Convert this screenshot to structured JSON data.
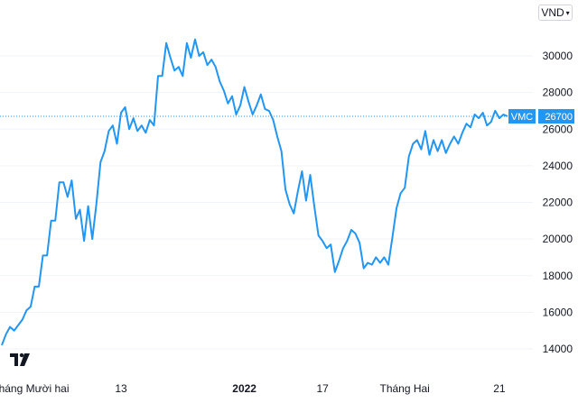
{
  "header": {
    "currency": "VND",
    "chevron_icon": "chevron-down-icon"
  },
  "branding": {
    "logo_icon": "tradingview-logo-icon"
  },
  "colors": {
    "line": "#2196f3",
    "label_bg": "#2196f3",
    "label_text": "#ffffff",
    "grid": "#f0f3fa",
    "text": "#131722"
  },
  "chart_data": {
    "type": "line",
    "title": "",
    "xlabel": "",
    "ylabel": "",
    "ylim": [
      13000,
      31500
    ],
    "y_ticks": [
      14000,
      16000,
      18000,
      20000,
      22000,
      24000,
      26000,
      28000,
      30000
    ],
    "x_ticks": [
      {
        "label": "Tháng Mười hai",
        "index": 7,
        "bold": false
      },
      {
        "label": "13",
        "index": 29,
        "bold": false
      },
      {
        "label": "2022",
        "index": 59,
        "bold": true
      },
      {
        "label": "17",
        "index": 78,
        "bold": false
      },
      {
        "label": "Tháng Hai",
        "index": 98,
        "bold": false
      },
      {
        "label": "21",
        "index": 121,
        "bold": false
      }
    ],
    "current_label": {
      "symbol": "VMC",
      "value": 26700
    },
    "series": [
      {
        "values": [
          14200,
          14800,
          15200,
          15000,
          15300,
          15600,
          16100,
          16300,
          17400,
          17400,
          19100,
          19100,
          21000,
          21000,
          23100,
          23100,
          22300,
          23200,
          21100,
          21600,
          19900,
          21800,
          20000,
          21900,
          24200,
          24800,
          25900,
          26200,
          25200,
          26900,
          27200,
          26000,
          26600,
          25900,
          26200,
          25800,
          26500,
          26200,
          28900,
          28900,
          30700,
          29900,
          29200,
          29400,
          28900,
          30700,
          29900,
          30900,
          30000,
          30200,
          29500,
          29800,
          29400,
          28600,
          28100,
          27400,
          27800,
          26800,
          27300,
          28300,
          27500,
          26800,
          27300,
          27900,
          27100,
          27000,
          26500,
          25600,
          24800,
          22700,
          21900,
          21400,
          22600,
          23700,
          22100,
          23500,
          21800,
          20200,
          19900,
          19500,
          19700,
          18200,
          18800,
          19500,
          19900,
          20500,
          20300,
          19800,
          18400,
          18700,
          18600,
          19000,
          18700,
          19000,
          18600,
          20100,
          21700,
          22500,
          22800,
          24500,
          25200,
          25400,
          24900,
          25900,
          24600,
          25400,
          24800,
          25400,
          24700,
          25200,
          25600,
          25200,
          25800,
          26300,
          26100,
          26800,
          26600,
          26900,
          26200,
          26400,
          27000,
          26600,
          26800,
          26700
        ]
      }
    ]
  }
}
